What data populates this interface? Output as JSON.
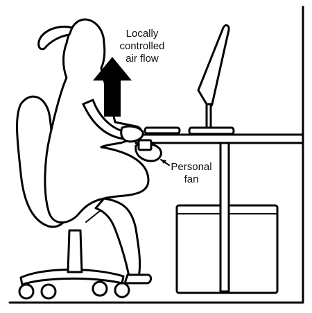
{
  "labels": {
    "airflow": [
      "Locally",
      "controlled",
      "air flow"
    ],
    "fan": [
      "Personal",
      "fan"
    ]
  },
  "colors": {
    "line": "#000000",
    "background": "#ffffff",
    "text": "#111111"
  }
}
